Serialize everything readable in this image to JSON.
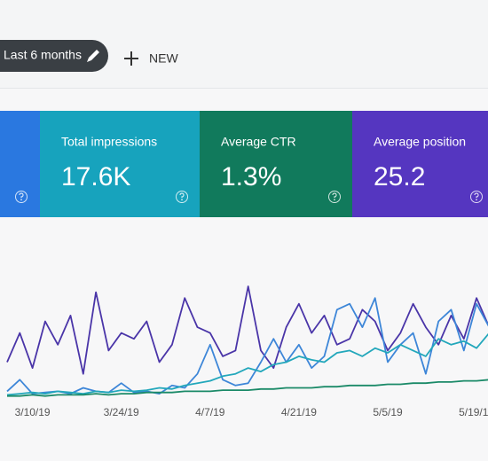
{
  "toolbar": {
    "date_range": "Last 6 months",
    "new_button": "NEW"
  },
  "metrics": [
    {
      "label": "Total impressions",
      "value": "17.6K",
      "color": "#17a3bd"
    },
    {
      "label": "Average CTR",
      "value": "1.3%",
      "color": "#117a5c"
    },
    {
      "label": "Average position",
      "value": "25.2",
      "color": "#5536c0"
    }
  ],
  "chart_data": {
    "type": "line",
    "categories": [
      null,
      null,
      "3/10/19",
      null,
      null,
      null,
      null,
      null,
      null,
      "3/24/19",
      null,
      null,
      null,
      null,
      null,
      null,
      "4/7/19",
      null,
      null,
      null,
      null,
      null,
      null,
      "4/21/19",
      null,
      null,
      null,
      null,
      null,
      null,
      "5/5/19",
      null,
      null,
      null,
      null,
      null,
      null,
      "5/19/19",
      null
    ],
    "series": [
      {
        "color": "#4a35a8",
        "values": [
          30,
          55,
          25,
          65,
          45,
          70,
          20,
          90,
          40,
          55,
          50,
          65,
          30,
          45,
          85,
          60,
          55,
          35,
          40,
          95,
          40,
          25,
          60,
          80,
          55,
          70,
          45,
          50,
          75,
          65,
          40,
          55,
          80,
          60,
          45,
          70,
          50,
          85,
          60
        ]
      },
      {
        "color": "#3d86d8",
        "values": [
          5,
          15,
          3,
          4,
          5,
          3,
          8,
          5,
          4,
          12,
          4,
          5,
          3,
          10,
          8,
          20,
          45,
          15,
          10,
          12,
          30,
          50,
          30,
          45,
          25,
          35,
          75,
          80,
          60,
          85,
          30,
          45,
          55,
          20,
          65,
          75,
          40,
          80,
          60
        ]
      },
      {
        "color": "#22a7bb",
        "values": [
          2,
          3,
          4,
          3,
          5,
          4,
          3,
          5,
          4,
          6,
          5,
          6,
          8,
          7,
          10,
          12,
          14,
          18,
          20,
          25,
          22,
          28,
          30,
          35,
          32,
          30,
          38,
          40,
          35,
          42,
          38,
          45,
          40,
          35,
          50,
          45,
          48,
          42,
          55
        ]
      },
      {
        "color": "#1b8a68",
        "values": [
          1,
          1,
          2,
          1,
          2,
          2,
          2,
          3,
          2,
          3,
          3,
          4,
          4,
          4,
          5,
          5,
          5,
          6,
          6,
          6,
          7,
          7,
          8,
          8,
          8,
          9,
          9,
          10,
          10,
          10,
          11,
          11,
          12,
          12,
          13,
          13,
          14,
          14,
          15
        ]
      }
    ]
  }
}
